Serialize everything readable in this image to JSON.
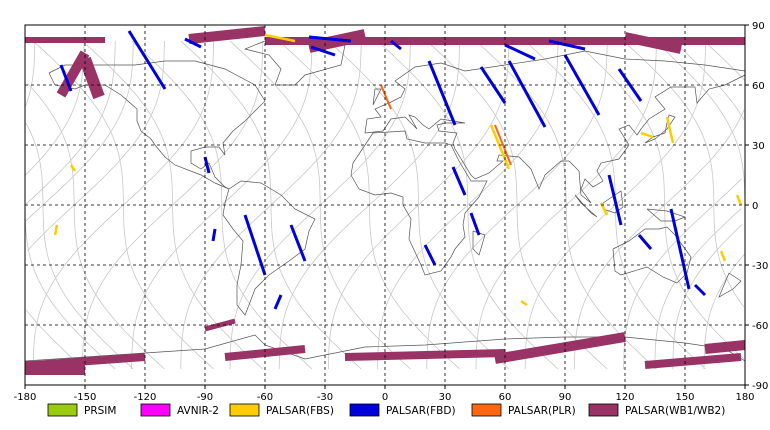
{
  "map": {
    "x_ticks": [
      "-180",
      "-150",
      "-120",
      "-90",
      "-60",
      "-30",
      "0",
      "30",
      "60",
      "90",
      "120",
      "150",
      "180"
    ],
    "y_ticks": [
      "90",
      "60",
      "30",
      "0",
      "-30",
      "-60",
      "-90"
    ],
    "lon_range": [
      -180,
      180
    ],
    "lat_range": [
      -90,
      90
    ],
    "grid": "dashed"
  },
  "legend": [
    {
      "label": "PRSIM",
      "color": "#99cc11"
    },
    {
      "label": "AVNIR-2",
      "color": "#ff00ff"
    },
    {
      "label": "PALSAR(FBS)",
      "color": "#ffcc00"
    },
    {
      "label": "PALSAR(FBD)",
      "color": "#0000dd"
    },
    {
      "label": "PALSAR(PLR)",
      "color": "#ff6611"
    },
    {
      "label": "PALSAR(WB1/WB2)",
      "color": "#993366"
    }
  ]
}
